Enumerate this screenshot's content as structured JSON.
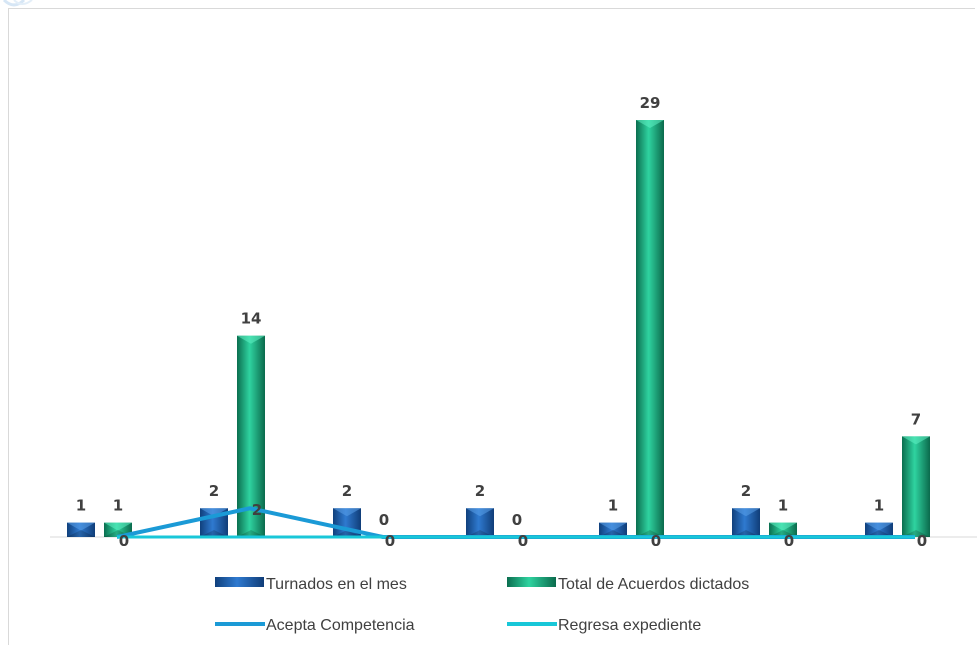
{
  "chart_data": {
    "type": "bar",
    "title": "",
    "xlabel": "",
    "ylabel": "",
    "categories": [
      "",
      "",
      "",
      "",
      "",
      "",
      ""
    ],
    "ylim": [
      0,
      29
    ],
    "grid": false,
    "legend_position": "bottom",
    "series": [
      {
        "name": "Turnados en el mes",
        "type": "bar",
        "values": [
          1,
          2,
          2,
          2,
          1,
          2,
          1
        ],
        "color": "#1f5fae"
      },
      {
        "name": "Total de Acuerdos dictados",
        "type": "bar",
        "values": [
          1,
          14,
          0,
          0,
          29,
          1,
          7
        ],
        "color": "#1aa57a"
      },
      {
        "name": "Acepta Competencia",
        "type": "line",
        "values": [
          0,
          2,
          0,
          0,
          0,
          0,
          0
        ],
        "color": "#1b9ad6"
      },
      {
        "name": "Regresa expediente",
        "type": "line",
        "values": [
          0,
          0,
          0,
          0,
          0,
          0,
          0
        ],
        "color": "#18c7d8"
      }
    ]
  }
}
